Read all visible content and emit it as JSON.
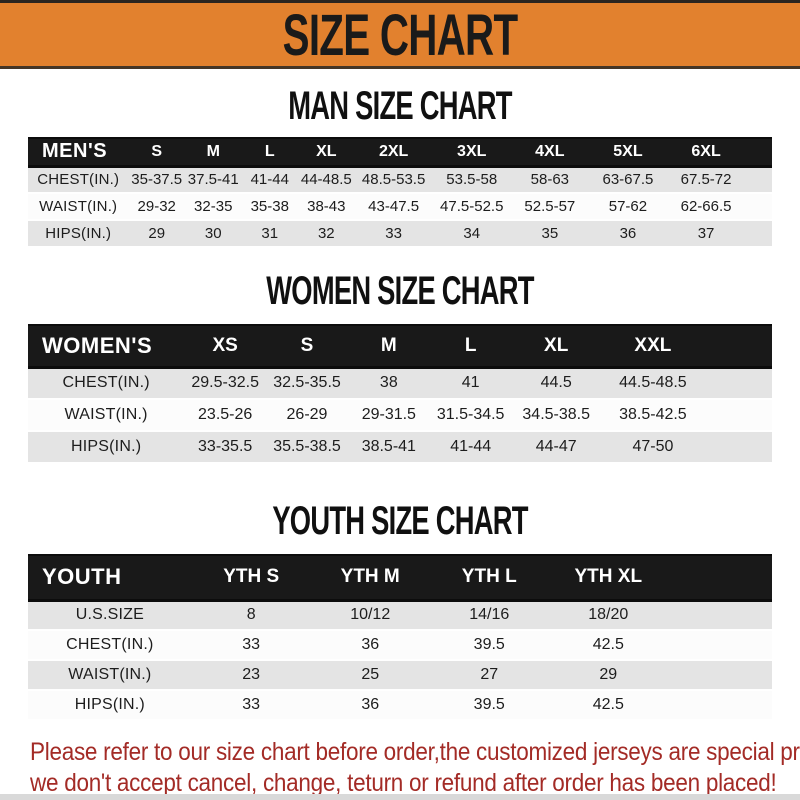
{
  "header": {
    "title": "SIZE CHART",
    "bg_color": "#E2812E",
    "text_color": "#1A1A1A"
  },
  "sections": [
    {
      "title": "MAN SIZE CHART",
      "group_label": "MEN'S",
      "sizes": [
        "S",
        "M",
        "L",
        "XL",
        "2XL",
        "3XL",
        "4XL",
        "5XL",
        "6XL"
      ],
      "rows": [
        {
          "label": "CHEST(IN.)",
          "values": [
            "35-37.5",
            "37.5-41",
            "41-44",
            "44-48.5",
            "48.5-53.5",
            "53.5-58",
            "58-63",
            "63-67.5",
            "67.5-72"
          ]
        },
        {
          "label": "WAIST(IN.)",
          "values": [
            "29-32",
            "32-35",
            "35-38",
            "38-43",
            "43-47.5",
            "47.5-52.5",
            "52.5-57",
            "57-62",
            "62-66.5"
          ]
        },
        {
          "label": "HIPS(IN.)",
          "values": [
            "29",
            "30",
            "31",
            "32",
            "33",
            "34",
            "35",
            "36",
            "37"
          ]
        }
      ]
    },
    {
      "title": "WOMEN SIZE CHART",
      "group_label": "WOMEN'S",
      "sizes": [
        "XS",
        "S",
        "M",
        "L",
        "XL",
        "XXL"
      ],
      "rows": [
        {
          "label": "CHEST(IN.)",
          "values": [
            "29.5-32.5",
            "32.5-35.5",
            "38",
            "41",
            "44.5",
            "44.5-48.5"
          ]
        },
        {
          "label": "WAIST(IN.)",
          "values": [
            "23.5-26",
            "26-29",
            "29-31.5",
            "31.5-34.5",
            "34.5-38.5",
            "38.5-42.5"
          ]
        },
        {
          "label": "HIPS(IN.)",
          "values": [
            "33-35.5",
            "35.5-38.5",
            "38.5-41",
            "41-44",
            "44-47",
            "47-50"
          ]
        }
      ]
    },
    {
      "title": "YOUTH SIZE CHART",
      "group_label": "YOUTH",
      "sizes": [
        "YTH S",
        "YTH M",
        "YTH L",
        "YTH XL"
      ],
      "rows": [
        {
          "label": "U.S.SIZE",
          "values": [
            "8",
            "10/12",
            "14/16",
            "18/20"
          ]
        },
        {
          "label": "CHEST(IN.)",
          "values": [
            "33",
            "36",
            "39.5",
            "42.5"
          ]
        },
        {
          "label": "WAIST(IN.)",
          "values": [
            "23",
            "25",
            "27",
            "29"
          ]
        },
        {
          "label": "HIPS(IN.)",
          "values": [
            "33",
            "36",
            "39.5",
            "42.5"
          ]
        }
      ]
    }
  ],
  "footer": {
    "line1": "Please refer to our size chart before order,the customized jerseys are special products,",
    "line2": "we don't accept cancel, change, teturn or refund after order has been placed!",
    "text_color": "#A32B26"
  }
}
